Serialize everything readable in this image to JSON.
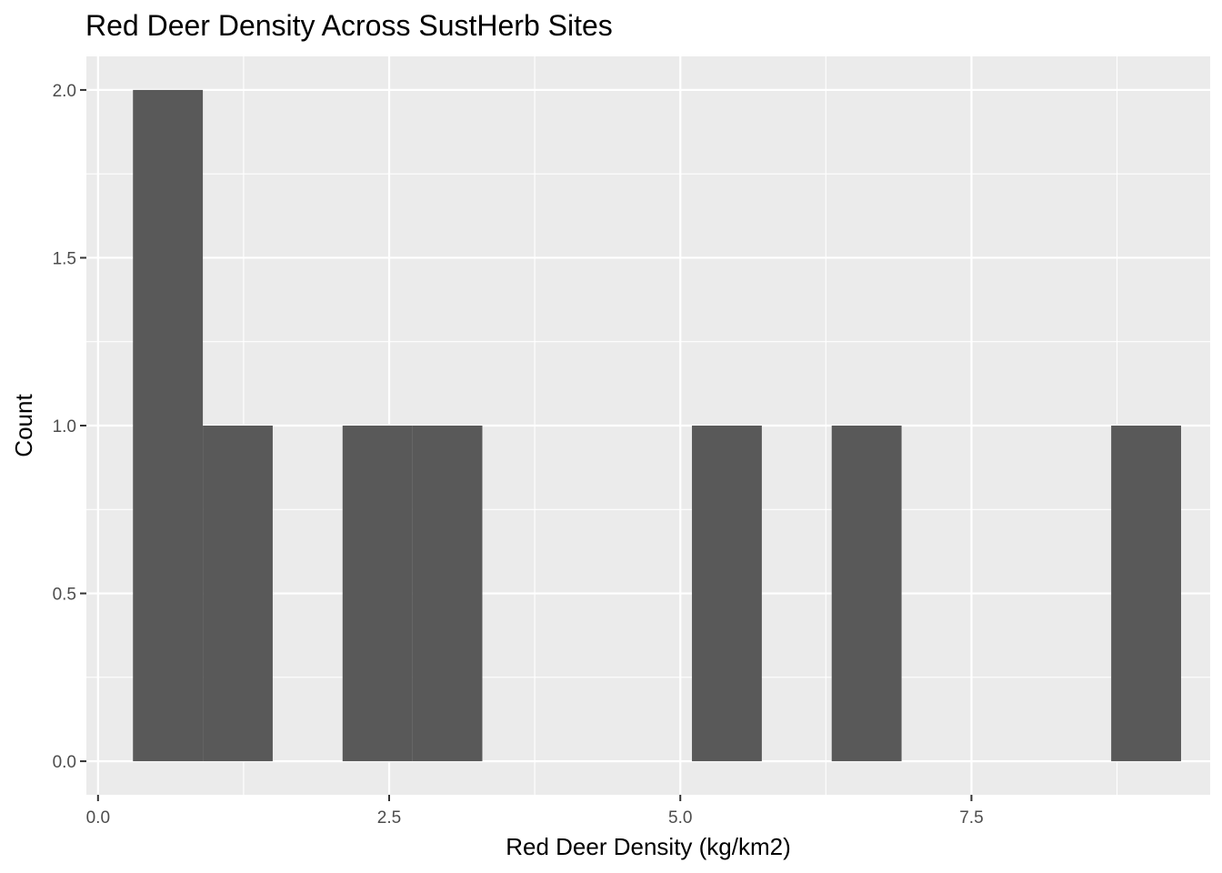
{
  "chart_data": {
    "type": "bar",
    "title": "Red Deer Density Across SustHerb Sites",
    "xlabel": "Red Deer Density (kg/km2)",
    "ylabel": "Count",
    "xlim": [
      -0.1,
      9.55
    ],
    "ylim": [
      -0.1,
      2.1
    ],
    "x_ticks": [
      0,
      2.5,
      5,
      7.5
    ],
    "x_tick_labels": [
      "0.0",
      "2.5",
      "5.0",
      "7.5"
    ],
    "y_ticks": [
      0,
      0.5,
      1,
      1.5,
      2
    ],
    "y_tick_labels": [
      "0.0",
      "0.5",
      "1.0",
      "1.5",
      "2.0"
    ],
    "bin_width": 0.6,
    "bins": [
      {
        "start": 0.3,
        "end": 0.9,
        "count": 2
      },
      {
        "start": 0.9,
        "end": 1.5,
        "count": 1
      },
      {
        "start": 2.1,
        "end": 2.7,
        "count": 1
      },
      {
        "start": 2.7,
        "end": 3.3,
        "count": 1
      },
      {
        "start": 5.1,
        "end": 5.7,
        "count": 1
      },
      {
        "start": 6.3,
        "end": 6.9,
        "count": 1
      },
      {
        "start": 8.7,
        "end": 9.3,
        "count": 1
      }
    ],
    "grid": true,
    "colors": {
      "panel": "#ebebeb",
      "grid": "#ffffff",
      "bar": "#595959",
      "tick": "#333333"
    }
  }
}
